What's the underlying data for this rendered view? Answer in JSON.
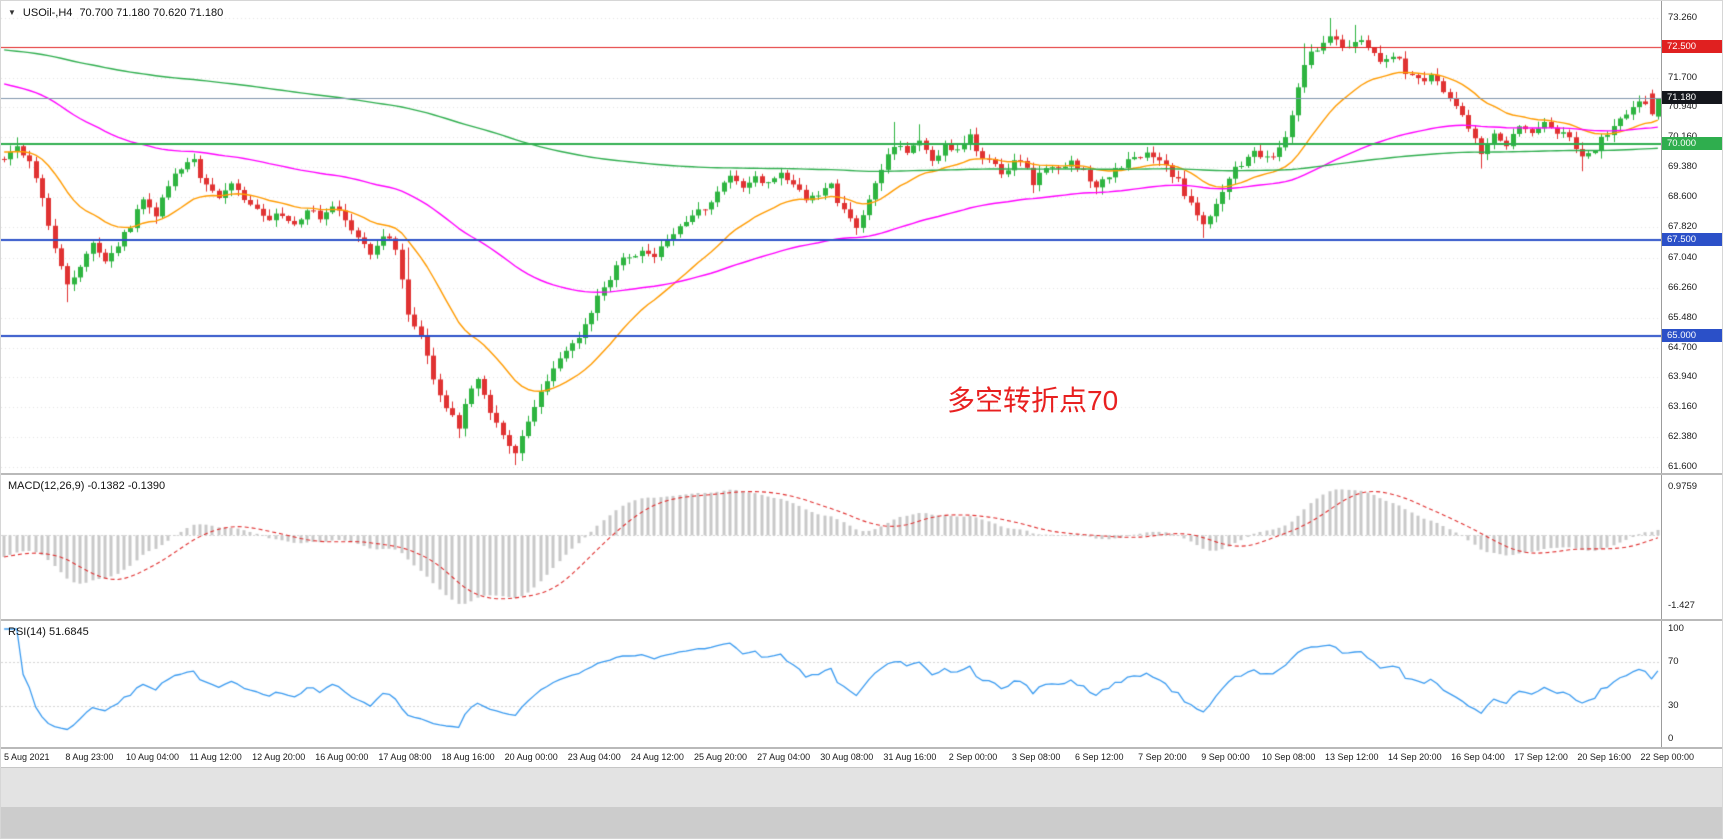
{
  "window": {
    "collapse_icon": "▼",
    "symbol_period": "USOil-,H4",
    "ohlc_text": "70.700 71.180 70.620 71.180"
  },
  "indicators": {
    "macd_title": "MACD(12,26,9) -0.1382 -0.1390",
    "rsi_title": "RSI(14) 51.6845"
  },
  "annotation": {
    "text": "多空转折点70",
    "color": "#e82020"
  },
  "colors": {
    "background": "#ffffff",
    "grid": "#e3e3e3",
    "candle_up": "#2eb440",
    "candle_down": "#e03232",
    "axis_text": "#1a1a1a",
    "panel_border": "#b9b9b9",
    "macd_hist": "#c9c9c9",
    "macd_signal": "#e03030",
    "macd_zero": "#d6d6d6",
    "rsi_line": "#3b9bf0",
    "rsi_level": "#d4d4d4",
    "current_price_line": "#8096ad",
    "current_price_badge_bg": "#14161c"
  },
  "price_axis": {
    "labels": [
      "73.260",
      "71.700",
      "70.940",
      "70.160",
      "69.380",
      "68.600",
      "67.820",
      "67.040",
      "66.260",
      "65.480",
      "64.700",
      "63.940",
      "63.160",
      "62.380",
      "61.600"
    ]
  },
  "macd_axis": {
    "top": "0.9759",
    "bottom": "-1.427"
  },
  "rsi_axis": {
    "labels": [
      "100",
      "70",
      "30",
      "0"
    ],
    "values": [
      100,
      70,
      30,
      0
    ]
  },
  "time_axis": {
    "candles_per_label": 10,
    "labels": [
      "5 Aug 2021",
      "8 Aug 23:00",
      "10 Aug 04:00",
      "11 Aug 12:00",
      "12 Aug 20:00",
      "16 Aug 00:00",
      "17 Aug 08:00",
      "18 Aug 16:00",
      "20 Aug 00:00",
      "23 Aug 04:00",
      "24 Aug 12:00",
      "25 Aug 20:00",
      "27 Aug 04:00",
      "30 Aug 08:00",
      "31 Aug 16:00",
      "2 Sep 00:00",
      "3 Sep 08:00",
      "6 Sep 12:00",
      "7 Sep 20:00",
      "9 Sep 00:00",
      "10 Sep 08:00",
      "13 Sep 12:00",
      "14 Sep 20:00",
      "16 Sep 04:00",
      "17 Sep 12:00",
      "20 Sep 16:00",
      "22 Sep 00:00"
    ]
  },
  "chart_data": {
    "type": "candlestick",
    "symbol": "USOil",
    "timeframe": "H4",
    "last_bar": {
      "open": 70.7,
      "high": 71.18,
      "low": 70.62,
      "close": 71.18
    },
    "candle_count": 263,
    "price_range_visible": [
      61.6,
      73.26
    ],
    "price_path_waypoints": [
      [
        0,
        69.6
      ],
      [
        2,
        69.9
      ],
      [
        4,
        69.5
      ],
      [
        6,
        68.6
      ],
      [
        8,
        67.2
      ],
      [
        10,
        66.4
      ],
      [
        12,
        66.8
      ],
      [
        14,
        67.5
      ],
      [
        16,
        66.9
      ],
      [
        18,
        67.4
      ],
      [
        20,
        67.9
      ],
      [
        22,
        68.5
      ],
      [
        24,
        68.2
      ],
      [
        26,
        68.9
      ],
      [
        28,
        69.4
      ],
      [
        30,
        69.5
      ],
      [
        32,
        68.9
      ],
      [
        34,
        68.5
      ],
      [
        36,
        69.0
      ],
      [
        38,
        68.6
      ],
      [
        40,
        68.25
      ],
      [
        42,
        68.0
      ],
      [
        44,
        68.2
      ],
      [
        46,
        67.9
      ],
      [
        48,
        68.3
      ],
      [
        50,
        68.1
      ],
      [
        52,
        68.35
      ],
      [
        54,
        68.0
      ],
      [
        56,
        67.5
      ],
      [
        58,
        67.1
      ],
      [
        60,
        67.6
      ],
      [
        62,
        67.3
      ],
      [
        63,
        66.5
      ],
      [
        64,
        65.6
      ],
      [
        66,
        64.9
      ],
      [
        68,
        63.9
      ],
      [
        70,
        63.2
      ],
      [
        72,
        62.6
      ],
      [
        73,
        63.3
      ],
      [
        75,
        63.9
      ],
      [
        77,
        63.1
      ],
      [
        79,
        62.4
      ],
      [
        81,
        61.95
      ],
      [
        83,
        62.8
      ],
      [
        85,
        63.5
      ],
      [
        87,
        64.2
      ],
      [
        89,
        64.7
      ],
      [
        91,
        64.9
      ],
      [
        93,
        65.7
      ],
      [
        95,
        66.3
      ],
      [
        97,
        66.8
      ],
      [
        99,
        67.1
      ],
      [
        101,
        67.25
      ],
      [
        103,
        67.0
      ],
      [
        105,
        67.5
      ],
      [
        107,
        67.8
      ],
      [
        109,
        68.1
      ],
      [
        111,
        68.3
      ],
      [
        113,
        68.7
      ],
      [
        115,
        69.2
      ],
      [
        117,
        68.8
      ],
      [
        119,
        69.1
      ],
      [
        121,
        69.0
      ],
      [
        123,
        69.3
      ],
      [
        125,
        68.9
      ],
      [
        127,
        68.5
      ],
      [
        129,
        68.7
      ],
      [
        131,
        68.9
      ],
      [
        133,
        68.2
      ],
      [
        135,
        67.9
      ],
      [
        137,
        68.5
      ],
      [
        139,
        69.4
      ],
      [
        141,
        70.0
      ],
      [
        143,
        69.7
      ],
      [
        145,
        70.1
      ],
      [
        147,
        69.6
      ],
      [
        149,
        69.9
      ],
      [
        151,
        69.75
      ],
      [
        153,
        70.2
      ],
      [
        155,
        69.6
      ],
      [
        158,
        69.3
      ],
      [
        161,
        69.6
      ],
      [
        163,
        69.0
      ],
      [
        165,
        69.3
      ],
      [
        168,
        69.5
      ],
      [
        171,
        69.4
      ],
      [
        173,
        68.8
      ],
      [
        175,
        69.2
      ],
      [
        178,
        69.5
      ],
      [
        181,
        69.7
      ],
      [
        184,
        69.4
      ],
      [
        186,
        69.0
      ],
      [
        188,
        68.4
      ],
      [
        190,
        67.9
      ],
      [
        192,
        68.4
      ],
      [
        194,
        69.1
      ],
      [
        196,
        69.5
      ],
      [
        198,
        69.8
      ],
      [
        201,
        69.6
      ],
      [
        203,
        70.1
      ],
      [
        206,
        72.1
      ],
      [
        208,
        72.5
      ],
      [
        210,
        72.8
      ],
      [
        212,
        72.5
      ],
      [
        214,
        72.7
      ],
      [
        216,
        72.5
      ],
      [
        218,
        72.2
      ],
      [
        220,
        72.35
      ],
      [
        222,
        71.9
      ],
      [
        224,
        71.6
      ],
      [
        226,
        71.8
      ],
      [
        228,
        71.3
      ],
      [
        230,
        71.0
      ],
      [
        232,
        70.3
      ],
      [
        234,
        69.8
      ],
      [
        236,
        70.2
      ],
      [
        238,
        70.0
      ],
      [
        240,
        70.45
      ],
      [
        242,
        70.2
      ],
      [
        244,
        70.55
      ],
      [
        246,
        70.3
      ],
      [
        248,
        70.1
      ],
      [
        250,
        69.7
      ],
      [
        252,
        69.9
      ],
      [
        254,
        70.3
      ],
      [
        256,
        70.7
      ],
      [
        258,
        70.9
      ],
      [
        260,
        71.1
      ],
      [
        262,
        71.18
      ]
    ],
    "wick_pins": [
      {
        "i": 2,
        "high": 70.16
      },
      {
        "i": 10,
        "low": 65.88
      },
      {
        "i": 30,
        "high": 69.74
      },
      {
        "i": 64,
        "high": 67.3
      },
      {
        "i": 72,
        "low": 62.35
      },
      {
        "i": 81,
        "low": 61.65
      },
      {
        "i": 141,
        "high": 70.56
      },
      {
        "i": 145,
        "high": 70.5
      },
      {
        "i": 190,
        "low": 67.55
      },
      {
        "i": 206,
        "high": 72.6
      },
      {
        "i": 210,
        "high": 73.26
      },
      {
        "i": 214,
        "high": 73.08
      },
      {
        "i": 234,
        "low": 69.35
      },
      {
        "i": 250,
        "low": 69.28
      }
    ],
    "candle_overrides": [
      {
        "i": 261,
        "o": 71.3,
        "h": 71.4,
        "l": 70.72,
        "c": 70.76
      },
      {
        "i": 262,
        "o": 70.7,
        "h": 71.18,
        "l": 70.62,
        "c": 71.18
      }
    ],
    "moving_averages": [
      {
        "name": "ma-fast",
        "period": 20,
        "seed": 69.8,
        "color": "#ff9b00"
      },
      {
        "name": "ma-mid",
        "period": 80,
        "seed": 71.6,
        "color": "#ff00ff"
      },
      {
        "name": "ma-slow",
        "period": 300,
        "seed": 72.45,
        "color": "#2fae4e"
      }
    ],
    "horizontal_levels": [
      {
        "price": 72.5,
        "label": "72.500",
        "color": "#e02020",
        "width": 1
      },
      {
        "price": 70.0,
        "label": "70.000",
        "color": "#2fae4e",
        "width": 2
      },
      {
        "price": 67.5,
        "label": "67.500",
        "color": "#2b50c8",
        "width": 2
      },
      {
        "price": 65.0,
        "label": "65.000",
        "color": "#2b50c8",
        "width": 2
      }
    ],
    "current_price": {
      "value": 71.18,
      "label": "71.180"
    },
    "macd": {
      "fast": 12,
      "slow": 26,
      "signal": 9,
      "value": -0.1382,
      "signal_value": -0.139,
      "axis_max": 0.9759,
      "axis_min": -1.427
    },
    "rsi": {
      "period": 14,
      "value": 51.6845,
      "levels": [
        70,
        30
      ]
    }
  }
}
